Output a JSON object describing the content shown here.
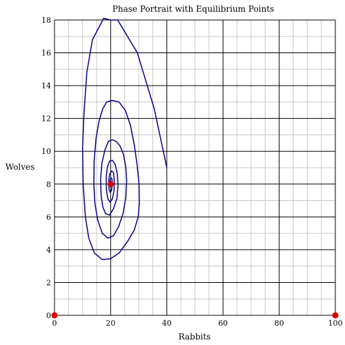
{
  "chart_data": {
    "type": "line",
    "title": "Phase Portrait with Equilibrium Points",
    "xlabel": "Rabbits",
    "ylabel": "Wolves",
    "xlim": [
      0,
      100
    ],
    "ylim": [
      0,
      18
    ],
    "xticks": [
      0,
      20,
      40,
      60,
      80,
      100
    ],
    "yticks": [
      0,
      2,
      4,
      6,
      8,
      10,
      12,
      14,
      16,
      18
    ],
    "x_tick_labels": [
      "0",
      "20",
      "40",
      "60",
      "80",
      "100"
    ],
    "y_tick_labels": [
      "0",
      "2",
      "4",
      "6",
      "8",
      "10",
      "12",
      "14",
      "16",
      "18"
    ],
    "x_minor_step": 5,
    "y_minor_step": 1,
    "grid": true,
    "series": [
      {
        "color": "#00008b",
        "points": [
          [
            40,
            9.0
          ],
          [
            35.5,
            12.6
          ],
          [
            29.5,
            16.0
          ],
          [
            22.5,
            18.0
          ],
          [
            20,
            18.0
          ],
          [
            17.5,
            18.1
          ],
          [
            13.5,
            16.8
          ],
          [
            11.5,
            14.8
          ],
          [
            10.5,
            12.3
          ],
          [
            10.0,
            10.2
          ],
          [
            10.2,
            8.0
          ],
          [
            11.0,
            6.0
          ],
          [
            12.2,
            4.7
          ],
          [
            14.2,
            3.8
          ],
          [
            17.0,
            3.4
          ],
          [
            20.0,
            3.45
          ],
          [
            23.0,
            3.8
          ],
          [
            26.0,
            4.5
          ],
          [
            28.4,
            5.2
          ],
          [
            29.8,
            6.0
          ],
          [
            30.2,
            6.8
          ],
          [
            30.1,
            8.0
          ],
          [
            29.4,
            9.2
          ],
          [
            28.4,
            10.4
          ],
          [
            27.0,
            11.6
          ],
          [
            25.2,
            12.5
          ],
          [
            23.0,
            13.0
          ],
          [
            20.5,
            13.1
          ],
          [
            18.6,
            13.0
          ],
          [
            17.2,
            12.6
          ],
          [
            15.8,
            11.8
          ],
          [
            14.8,
            10.8
          ],
          [
            14.1,
            9.4
          ],
          [
            14.0,
            8.0
          ],
          [
            14.4,
            6.8
          ],
          [
            15.4,
            5.8
          ],
          [
            17.0,
            5.0
          ],
          [
            19.0,
            4.7
          ],
          [
            21.0,
            4.85
          ],
          [
            22.8,
            5.4
          ],
          [
            24.4,
            6.2
          ],
          [
            25.4,
            7.2
          ],
          [
            25.7,
            8.2
          ],
          [
            25.4,
            9.0
          ],
          [
            24.6,
            9.8
          ],
          [
            23.4,
            10.3
          ],
          [
            22.0,
            10.6
          ],
          [
            20.6,
            10.7
          ],
          [
            19.2,
            10.6
          ],
          [
            18.0,
            10.1
          ],
          [
            16.9,
            9.3
          ],
          [
            16.4,
            8.3
          ],
          [
            16.6,
            7.3
          ],
          [
            17.2,
            6.6
          ],
          [
            18.2,
            6.2
          ],
          [
            19.6,
            6.1
          ],
          [
            21.0,
            6.5
          ],
          [
            22.2,
            7.1
          ],
          [
            22.6,
            7.9
          ],
          [
            22.4,
            8.6
          ],
          [
            21.6,
            9.2
          ],
          [
            20.6,
            9.45
          ],
          [
            19.6,
            9.4
          ],
          [
            18.8,
            9.0
          ],
          [
            18.4,
            8.4
          ],
          [
            18.5,
            7.6
          ],
          [
            19.0,
            7.1
          ],
          [
            19.8,
            6.9
          ],
          [
            20.6,
            7.1
          ],
          [
            21.2,
            7.6
          ],
          [
            21.3,
            8.2
          ],
          [
            21.0,
            8.7
          ],
          [
            20.4,
            8.8
          ],
          [
            19.6,
            8.6
          ],
          [
            19.3,
            8.2
          ],
          [
            19.4,
            7.7
          ],
          [
            19.8,
            7.5
          ],
          [
            20.3,
            7.6
          ],
          [
            20.6,
            8.0
          ],
          [
            20.5,
            8.3
          ],
          [
            20.1,
            8.4
          ],
          [
            19.8,
            8.2
          ],
          [
            19.9,
            7.9
          ],
          [
            20.2,
            7.9
          ],
          [
            20.2,
            8.1
          ],
          [
            20.0,
            8.0
          ]
        ]
      }
    ],
    "equilibrium_points": [
      {
        "x": 0,
        "y": 0
      },
      {
        "x": 20,
        "y": 8
      },
      {
        "x": 100,
        "y": 0
      }
    ],
    "equilibrium_color": "#dd0000",
    "grid_major_color": "#000000",
    "grid_minor_color": "#c8c8c8"
  }
}
